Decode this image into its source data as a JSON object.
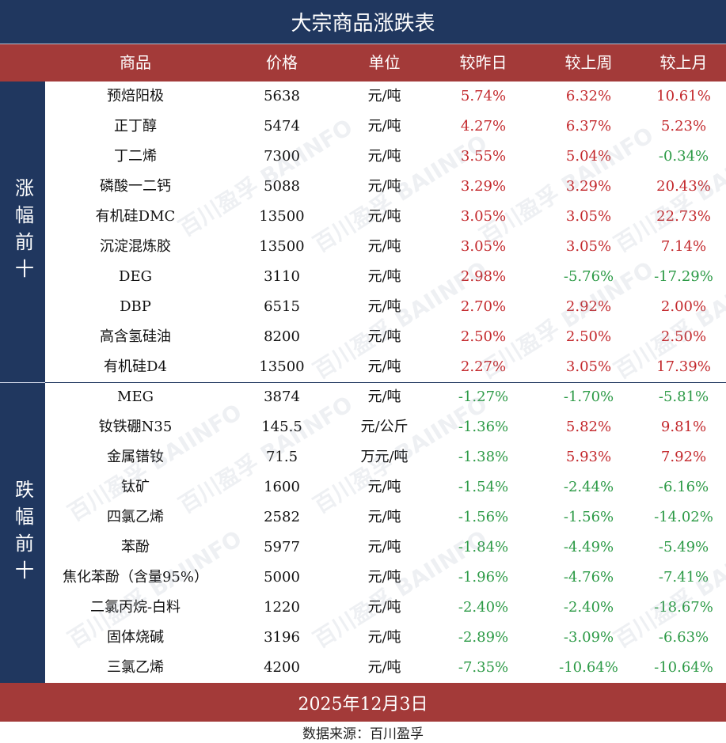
{
  "title": "大宗商品涨跌表",
  "headers": {
    "name": "商品",
    "price": "价格",
    "unit": "单位",
    "day": "较昨日",
    "week": "较上周",
    "month": "较上月"
  },
  "sections": {
    "up_label": "涨幅前十",
    "down_label": "跌幅前十"
  },
  "rows": [
    {
      "name": "预焙阳极",
      "price": "5638",
      "unit": "元/吨",
      "day": "5.74%",
      "week": "6.32%",
      "month": "10.61%"
    },
    {
      "name": "正丁醇",
      "price": "5474",
      "unit": "元/吨",
      "day": "4.27%",
      "week": "6.37%",
      "month": "5.23%"
    },
    {
      "name": "丁二烯",
      "price": "7300",
      "unit": "元/吨",
      "day": "3.55%",
      "week": "5.04%",
      "month": "-0.34%"
    },
    {
      "name": "磷酸一二钙",
      "price": "5088",
      "unit": "元/吨",
      "day": "3.29%",
      "week": "3.29%",
      "month": "20.43%"
    },
    {
      "name": "有机硅DMC",
      "price": "13500",
      "unit": "元/吨",
      "day": "3.05%",
      "week": "3.05%",
      "month": "22.73%"
    },
    {
      "name": "沉淀混炼胶",
      "price": "13500",
      "unit": "元/吨",
      "day": "3.05%",
      "week": "3.05%",
      "month": "7.14%"
    },
    {
      "name": "DEG",
      "price": "3110",
      "unit": "元/吨",
      "day": "2.98%",
      "week": "-5.76%",
      "month": "-17.29%"
    },
    {
      "name": "DBP",
      "price": "6515",
      "unit": "元/吨",
      "day": "2.70%",
      "week": "2.92%",
      "month": "2.00%"
    },
    {
      "name": "高含氢硅油",
      "price": "8200",
      "unit": "元/吨",
      "day": "2.50%",
      "week": "2.50%",
      "month": "2.50%"
    },
    {
      "name": "有机硅D4",
      "price": "13500",
      "unit": "元/吨",
      "day": "2.27%",
      "week": "3.05%",
      "month": "17.39%"
    },
    {
      "name": "MEG",
      "price": "3874",
      "unit": "元/吨",
      "day": "-1.27%",
      "week": "-1.70%",
      "month": "-5.81%"
    },
    {
      "name": "钕铁硼N35",
      "price": "145.5",
      "unit": "元/公斤",
      "day": "-1.36%",
      "week": "5.82%",
      "month": "9.81%"
    },
    {
      "name": "金属镨钕",
      "price": "71.5",
      "unit": "万元/吨",
      "day": "-1.38%",
      "week": "5.93%",
      "month": "7.92%"
    },
    {
      "name": "钛矿",
      "price": "1600",
      "unit": "元/吨",
      "day": "-1.54%",
      "week": "-2.44%",
      "month": "-6.16%"
    },
    {
      "name": "四氯乙烯",
      "price": "2582",
      "unit": "元/吨",
      "day": "-1.56%",
      "week": "-1.56%",
      "month": "-14.02%"
    },
    {
      "name": "苯酚",
      "price": "5977",
      "unit": "元/吨",
      "day": "-1.84%",
      "week": "-4.49%",
      "month": "-5.49%"
    },
    {
      "name": "焦化苯酚（含量95%）",
      "price": "5000",
      "unit": "元/吨",
      "day": "-1.96%",
      "week": "-4.76%",
      "month": "-7.41%"
    },
    {
      "name": "二氯丙烷-白料",
      "price": "1220",
      "unit": "元/吨",
      "day": "-2.40%",
      "week": "-2.40%",
      "month": "-18.67%"
    },
    {
      "name": "固体烧碱",
      "price": "3196",
      "unit": "元/吨",
      "day": "-2.89%",
      "week": "-3.09%",
      "month": "-6.63%"
    },
    {
      "name": "三氯乙烯",
      "price": "4200",
      "unit": "元/吨",
      "day": "-7.35%",
      "week": "-10.64%",
      "month": "-10.64%"
    }
  ],
  "date": "2025年12月3日",
  "source": "数据来源：百川盈孚",
  "watermark": "百川盈孚 BAIINFO",
  "colors": {
    "navy": "#20375f",
    "header_red": "#a33a39",
    "positive": "#c3282c",
    "negative": "#2c9a46"
  }
}
